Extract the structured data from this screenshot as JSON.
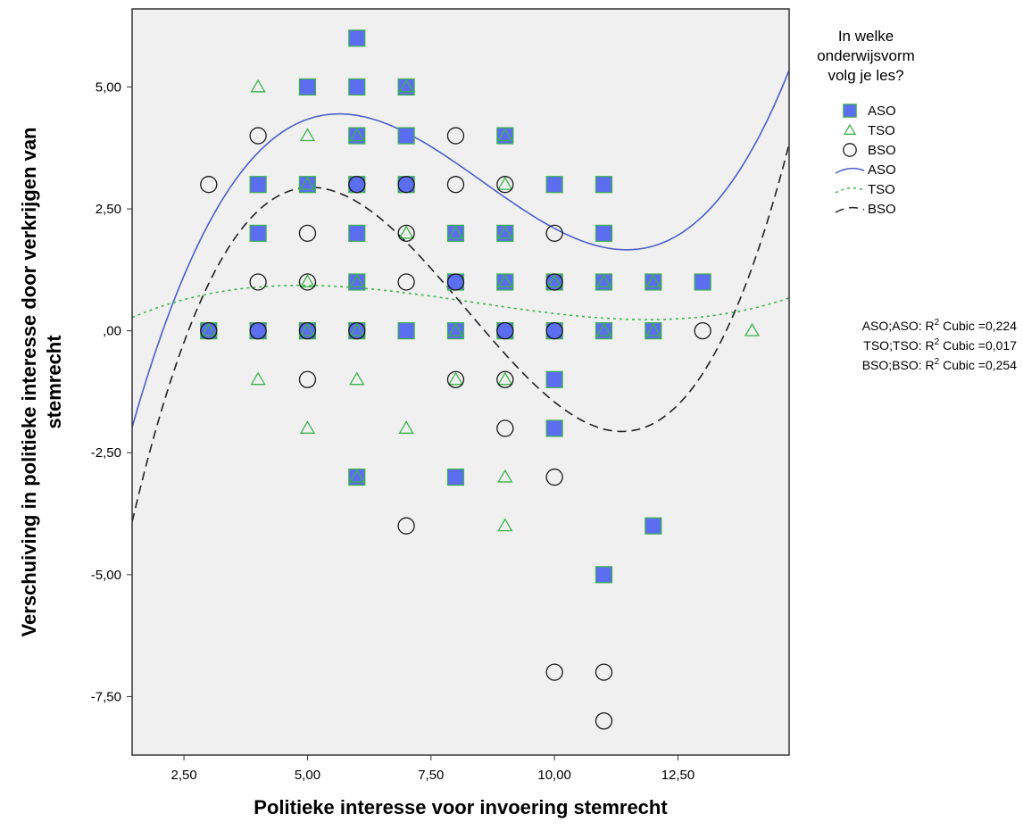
{
  "chart_data": {
    "type": "scatter",
    "xlabel": "Politieke interesse voor invoering stemrecht",
    "ylabel": "Verschuiving in politieke interesse door verkrijgen van stemrecht",
    "ylabel_lines": [
      "Verschuiving in politieke interesse door verkrijgen van",
      "stemrecht"
    ],
    "xlim": [
      1.45,
      14.75
    ],
    "ylim": [
      -8.7,
      6.6
    ],
    "x_ticks": [
      2.5,
      5,
      7.5,
      10,
      12.5
    ],
    "x_tick_labels": [
      "2,50",
      "5,00",
      "7,50",
      "10,00",
      "12,50"
    ],
    "y_ticks": [
      5,
      2.5,
      0,
      -2.5,
      -5,
      -7.5
    ],
    "y_tick_labels": [
      "5,00",
      "2,50",
      ",00",
      "-2,50",
      "-5,00",
      "-7,50"
    ],
    "grid": false,
    "background": "#f0f0f0",
    "legend": {
      "title_lines": [
        "In welke",
        "onderwijsvorm",
        "volg je les?"
      ],
      "placement": "right",
      "markers": [
        {
          "label": "ASO",
          "symbol": "square"
        },
        {
          "label": "TSO",
          "symbol": "triangle"
        },
        {
          "label": "BSO",
          "symbol": "circle"
        }
      ],
      "lines": [
        {
          "label": "ASO",
          "style": "solid"
        },
        {
          "label": "TSO",
          "style": "dotted"
        },
        {
          "label": "BSO",
          "style": "dashed"
        }
      ]
    },
    "series": [
      {
        "name": "ASO",
        "marker": "square",
        "color": "#5b6ef0",
        "edge": "#3cb34a",
        "points": [
          [
            3,
            0
          ],
          [
            4,
            3
          ],
          [
            4,
            2
          ],
          [
            4,
            0
          ],
          [
            5,
            5
          ],
          [
            5,
            3
          ],
          [
            5,
            0
          ],
          [
            6,
            6
          ],
          [
            6,
            5
          ],
          [
            6,
            4
          ],
          [
            6,
            3
          ],
          [
            6,
            2
          ],
          [
            6,
            1
          ],
          [
            6,
            0
          ],
          [
            6,
            -3
          ],
          [
            7,
            5
          ],
          [
            7,
            4
          ],
          [
            7,
            3
          ],
          [
            7,
            0
          ],
          [
            8,
            2
          ],
          [
            8,
            1
          ],
          [
            8,
            0
          ],
          [
            8,
            -3
          ],
          [
            9,
            4
          ],
          [
            9,
            2
          ],
          [
            9,
            1
          ],
          [
            9,
            0
          ],
          [
            10,
            3
          ],
          [
            10,
            1
          ],
          [
            10,
            0
          ],
          [
            10,
            -1
          ],
          [
            10,
            -2
          ],
          [
            11,
            3
          ],
          [
            11,
            2
          ],
          [
            11,
            1
          ],
          [
            11,
            0
          ],
          [
            11,
            -5
          ],
          [
            12,
            1
          ],
          [
            12,
            0
          ],
          [
            12,
            -4
          ],
          [
            13,
            1
          ]
        ]
      },
      {
        "name": "TSO",
        "marker": "triangle",
        "color": "#3cb34a",
        "points": [
          [
            3,
            0
          ],
          [
            4,
            5
          ],
          [
            4,
            -1
          ],
          [
            5,
            4
          ],
          [
            5,
            3
          ],
          [
            5,
            1
          ],
          [
            5,
            0
          ],
          [
            5,
            -2
          ],
          [
            6,
            4
          ],
          [
            6,
            1
          ],
          [
            6,
            0
          ],
          [
            6,
            -1
          ],
          [
            6,
            -3
          ],
          [
            7,
            5
          ],
          [
            7,
            2
          ],
          [
            7,
            -2
          ],
          [
            8,
            2
          ],
          [
            8,
            0
          ],
          [
            8,
            -1
          ],
          [
            9,
            4
          ],
          [
            9,
            3
          ],
          [
            9,
            2
          ],
          [
            9,
            1
          ],
          [
            9,
            -1
          ],
          [
            9,
            -3
          ],
          [
            9,
            -4
          ],
          [
            10,
            1
          ],
          [
            11,
            1
          ],
          [
            11,
            0
          ],
          [
            12,
            1
          ],
          [
            12,
            0
          ],
          [
            14,
            0
          ]
        ]
      },
      {
        "name": "BSO",
        "marker": "circle",
        "color": "#1a1a1a",
        "points": [
          [
            3,
            3
          ],
          [
            3,
            0
          ],
          [
            4,
            4
          ],
          [
            4,
            1
          ],
          [
            4,
            0
          ],
          [
            5,
            2
          ],
          [
            5,
            1
          ],
          [
            5,
            0
          ],
          [
            5,
            -1
          ],
          [
            6,
            3
          ],
          [
            6,
            0
          ],
          [
            7,
            3
          ],
          [
            7,
            2
          ],
          [
            7,
            1
          ],
          [
            7,
            -4
          ],
          [
            8,
            4
          ],
          [
            8,
            3
          ],
          [
            8,
            1
          ],
          [
            8,
            -1
          ],
          [
            9,
            3
          ],
          [
            9,
            0
          ],
          [
            9,
            -1
          ],
          [
            9,
            -2
          ],
          [
            10,
            2
          ],
          [
            10,
            1
          ],
          [
            10,
            0
          ],
          [
            10,
            -3
          ],
          [
            10,
            -7
          ],
          [
            11,
            -7
          ],
          [
            11,
            -8
          ],
          [
            13,
            0
          ]
        ]
      }
    ],
    "fit_lines": [
      {
        "name": "ASO",
        "model": "cubic",
        "style": "solid",
        "color": "#4b5fc8",
        "coefficients": [
          -8.5,
          5.49,
          -0.726,
          0.0283
        ]
      },
      {
        "name": "TSO",
        "model": "cubic",
        "style": "dotted",
        "color": "#3cb34a",
        "coefficients": [
          -0.545,
          0.703,
          -0.1018,
          0.00405
        ]
      },
      {
        "name": "BSO",
        "model": "cubic",
        "style": "dashed",
        "color": "#222222",
        "coefficients": [
          -12.01,
          6.93,
          -0.9885,
          0.0401
        ]
      }
    ],
    "r2_labels": [
      {
        "prefix": "ASO;ASO: R",
        "sup": "2",
        "suffix": " Cubic =0,224"
      },
      {
        "prefix": "TSO;TSO: R",
        "sup": "2",
        "suffix": " Cubic =0,017"
      },
      {
        "prefix": "BSO;BSO: R",
        "sup": "2",
        "suffix": " Cubic =0,254"
      }
    ]
  }
}
